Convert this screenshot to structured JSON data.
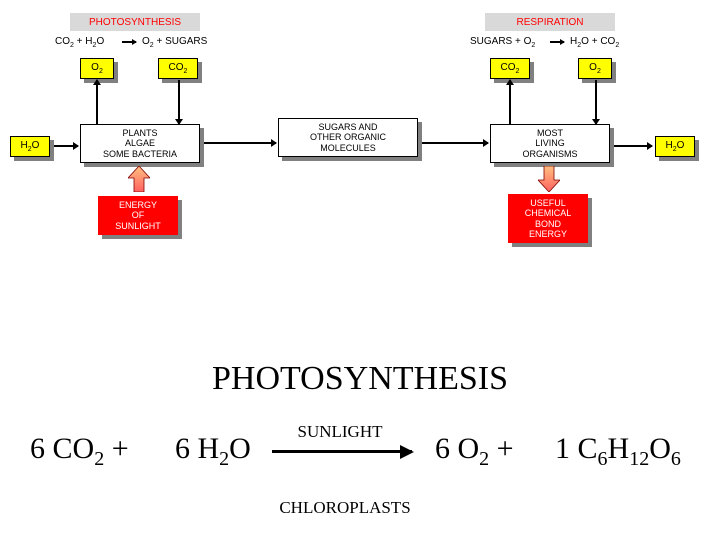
{
  "diagram": {
    "headers": {
      "photosynthesis": {
        "text": "PHOTOSYNTHESIS",
        "bg": "#d9d9d9",
        "color": "#ff0000"
      },
      "respiration": {
        "text": "RESPIRATION",
        "bg": "#d9d9d9",
        "color": "#ff0000"
      }
    },
    "eq_left_html": "CO<sub>2</sub> + H<sub>2</sub>O",
    "eq_left_rhs_html": "O<sub>2</sub> + SUGARS",
    "eq_right_html": "SUGARS + O<sub>2</sub>",
    "eq_right_rhs_html": "H<sub>2</sub>O + CO<sub>2</sub>",
    "yellow": {
      "o2_l": "O<sub>2</sub>",
      "co2_l": "CO<sub>2</sub>",
      "co2_r": "CO<sub>2</sub>",
      "o2_r": "O<sub>2</sub>",
      "h2o_l": "H<sub>2</sub>O",
      "h2o_r": "H<sub>2</sub>O"
    },
    "white": {
      "plants": "PLANTS\nALGAE\nSOME BACTERIA",
      "sugars": "SUGARS AND\nOTHER ORGANIC\nMOLECULES",
      "organisms": "MOST\nLIVING\nORGANISMS"
    },
    "red": {
      "energy_sunlight": "ENERGY\nOF\nSUNLIGHT",
      "useful_energy": "USEFUL\nCHEMICAL\nBOND\nENERGY"
    }
  },
  "equation": {
    "title": "PHOTOSYNTHESIS",
    "t1": "6 CO<sub>2</sub>  +",
    "t2": "6 H<sub>2</sub>O",
    "t3": "6 O<sub>2</sub>  +",
    "t4": "1  C<sub>6</sub>H<sub>12</sub>O<sub>6</sub>",
    "top_label": "SUNLIGHT",
    "bottom_label": "CHLOROPLASTS"
  }
}
